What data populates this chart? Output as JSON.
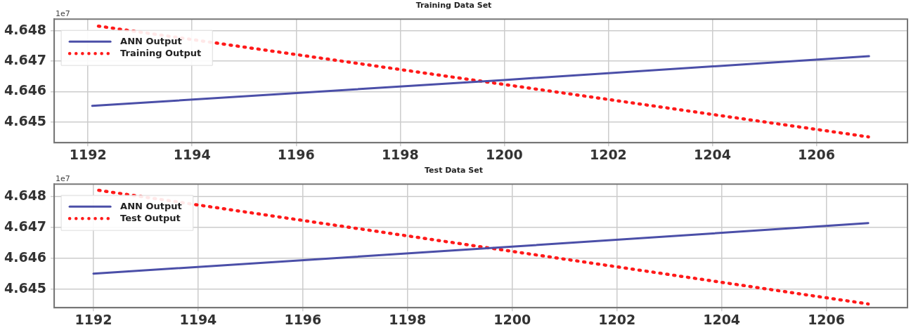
{
  "chart_data": [
    {
      "type": "line",
      "title": "Training Data Set",
      "annotations": [
        "1e7"
      ],
      "xlim": [
        1191.35,
        1207.75
      ],
      "xticks": [
        1192,
        1194,
        1196,
        1198,
        1200,
        1202,
        1204,
        1206
      ],
      "ylim": [
        4.64432,
        4.64838
      ],
      "yticks": [
        4.645,
        4.646,
        4.647,
        4.648
      ],
      "grid": true,
      "legend": "top left",
      "marker": "none",
      "series": [
        {
          "name": "ANN Output",
          "color": "#4b4fa8",
          "line_style": "solid",
          "x": [
            1192.08,
            1200,
            1207.01
          ],
          "values": [
            4.64553,
            4.64638,
            4.64716
          ]
        },
        {
          "name": "Training Output",
          "color": "#ff1a1a",
          "line_style": "dotted",
          "x": [
            1192.2,
            1207
          ],
          "values": [
            4.64815,
            4.64451
          ]
        }
      ]
    },
    {
      "type": "line",
      "title": "Test Data Set",
      "annotations": [
        "1e7"
      ],
      "xlim": [
        1191.25,
        1207.55
      ],
      "xticks": [
        1192,
        1194,
        1196,
        1198,
        1200,
        1202,
        1204,
        1206
      ],
      "ylim": [
        4.64441,
        4.6484
      ],
      "yticks": [
        4.645,
        4.646,
        4.647,
        4.648
      ],
      "grid": true,
      "legend": "top left",
      "marker": "none",
      "series": [
        {
          "name": "ANN Output",
          "color": "#4b4fa8",
          "line_style": "solid",
          "x": [
            1192.0,
            1200,
            1206.8
          ],
          "values": [
            4.64551,
            4.64638,
            4.64714
          ]
        },
        {
          "name": "Test Output",
          "color": "#ff1a1a",
          "line_style": "dotted",
          "x": [
            1192.1,
            1206.8
          ],
          "values": [
            4.6482,
            4.64453
          ]
        }
      ]
    }
  ]
}
